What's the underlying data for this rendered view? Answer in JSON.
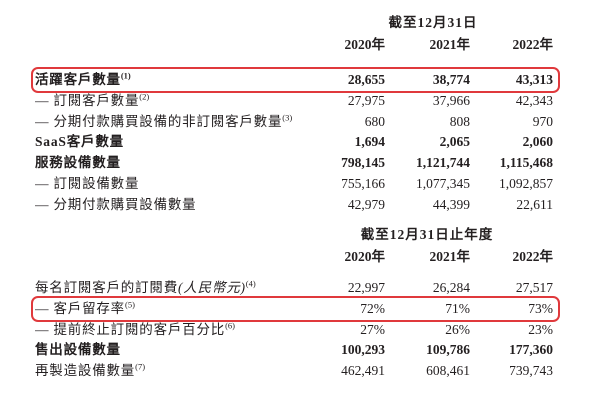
{
  "page": {
    "background": "#ffffff",
    "text_color": "#231f20",
    "highlight_color": "#e0393c"
  },
  "tables": [
    {
      "name": "operating-metrics-counts",
      "period_header": "截至12月31日",
      "year_headers": [
        "2020年",
        "2021年",
        "2022年"
      ],
      "rows": [
        {
          "label": "活躍客戶數量",
          "sup": "(1)",
          "bold": true,
          "highlighted": true,
          "values": [
            "28,655",
            "38,774",
            "43,313"
          ]
        },
        {
          "label": "— 訂閱客戶數量",
          "sup": "(2)",
          "bold": false,
          "highlighted": false,
          "values": [
            "27,975",
            "37,966",
            "42,343"
          ]
        },
        {
          "label": "— 分期付款購買設備的非訂閱客戶數量",
          "sup": "(3)",
          "bold": false,
          "highlighted": false,
          "values": [
            "680",
            "808",
            "970"
          ]
        },
        {
          "label": "SaaS客戶數量",
          "sup": "",
          "bold": true,
          "highlighted": false,
          "values": [
            "1,694",
            "2,065",
            "2,060"
          ]
        },
        {
          "label": "服務設備數量",
          "sup": "",
          "bold": true,
          "highlighted": false,
          "values": [
            "798,145",
            "1,121,744",
            "1,115,468"
          ]
        },
        {
          "label": "— 訂閱設備數量",
          "sup": "",
          "bold": false,
          "highlighted": false,
          "values": [
            "755,166",
            "1,077,345",
            "1,092,857"
          ]
        },
        {
          "label": "— 分期付款購買設備數量",
          "sup": "",
          "bold": false,
          "highlighted": false,
          "values": [
            "42,979",
            "44,399",
            "22,611"
          ]
        }
      ]
    },
    {
      "name": "subscription-metrics-annual",
      "period_header": "截至12月31日止年度",
      "year_headers": [
        "2020年",
        "2021年",
        "2022年"
      ],
      "rows": [
        {
          "label": "每名訂閱客戶的訂閱費",
          "label_italic": "(人民幣元)",
          "sup": "(4)",
          "bold": false,
          "highlighted": false,
          "values": [
            "22,997",
            "26,284",
            "27,517"
          ]
        },
        {
          "label": "— 客戶留存率",
          "sup": "(5)",
          "bold": false,
          "highlighted": true,
          "values": [
            "72%",
            "71%",
            "73%"
          ]
        },
        {
          "label": "— 提前終止訂閱的客戶百分比",
          "sup": "(6)",
          "bold": false,
          "highlighted": false,
          "values": [
            "27%",
            "26%",
            "23%"
          ]
        },
        {
          "label": "售出設備數量",
          "sup": "",
          "bold": true,
          "highlighted": false,
          "values": [
            "100,293",
            "109,786",
            "177,360"
          ]
        },
        {
          "label": "再製造設備數量",
          "sup": "(7)",
          "bold": false,
          "highlighted": false,
          "values": [
            "462,491",
            "608,461",
            "739,743"
          ]
        }
      ]
    }
  ]
}
